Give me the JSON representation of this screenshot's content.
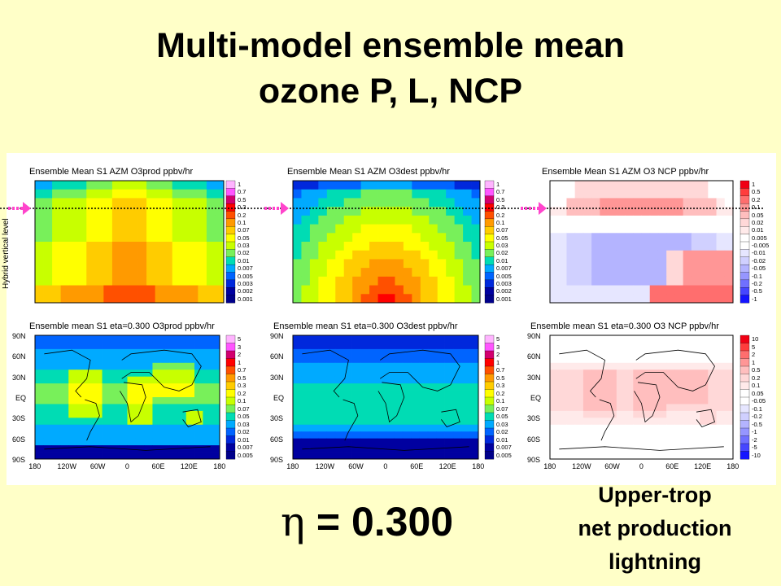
{
  "title": {
    "line1": "Multi-model ensemble mean",
    "line2": "ozone P, L, NCP"
  },
  "y_axis_label": "Hybrid vertical level",
  "eta_label": {
    "symbol": "η",
    "text": " = 0.300"
  },
  "annotation": [
    "Upper-trop",
    "net production",
    "lightning"
  ],
  "colors": {
    "background": "#ffffc8",
    "arrow": "#ff44cc",
    "level_line": "#000000"
  },
  "chart_data": [
    {
      "type": "heatmap",
      "title": "Ensemble Mean S1 AZM O3prod ppbv/hr",
      "colorbar_labels": [
        "1",
        "0.7",
        "0.5",
        "0.3",
        "0.2",
        "0.1",
        "0.07",
        "0.05",
        "0.03",
        "0.02",
        "0.01",
        "0.007",
        "0.005",
        "0.003",
        "0.002",
        "0.001"
      ],
      "palette": "sequential",
      "xlabel": "",
      "ylabel": "Hybrid vertical level"
    },
    {
      "type": "heatmap",
      "title": "Ensemble Mean S1 AZM O3dest ppbv/hr",
      "colorbar_labels": [
        "1",
        "0.7",
        "0.5",
        "0.3",
        "0.2",
        "0.1",
        "0.07",
        "0.05",
        "0.03",
        "0.02",
        "0.01",
        "0.007",
        "0.005",
        "0.003",
        "0.002",
        "0.001"
      ],
      "palette": "sequential"
    },
    {
      "type": "heatmap",
      "title": "Ensemble Mean S1 AZM O3 NCP ppbv/hr",
      "colorbar_labels": [
        "1",
        "0.5",
        "0.2",
        "0.1",
        "0.05",
        "0.02",
        "0.01",
        "0.005",
        "-0.005",
        "-0.01",
        "-0.02",
        "-0.05",
        "-0.1",
        "-0.2",
        "-0.5",
        "-1"
      ],
      "palette": "diverging"
    },
    {
      "type": "heatmap",
      "title": "Ensemble mean S1 eta=0.300 O3prod ppbv/hr",
      "yticks": [
        "90N",
        "60N",
        "30N",
        "EQ",
        "30S",
        "60S",
        "90S"
      ],
      "xticks": [
        "180",
        "120W",
        "60W",
        "0",
        "60E",
        "120E",
        "180"
      ],
      "colorbar_labels": [
        "5",
        "3",
        "2",
        "1",
        "0.7",
        "0.5",
        "0.3",
        "0.2",
        "0.1",
        "0.07",
        "0.05",
        "0.03",
        "0.02",
        "0.01",
        "0.007",
        "0.005"
      ],
      "palette": "sequential"
    },
    {
      "type": "heatmap",
      "title": "Ensemble mean S1 eta=0.300 O3dest ppbv/hr",
      "yticks": [
        "90N",
        "60N",
        "30N",
        "EQ",
        "30S",
        "60S",
        "90S"
      ],
      "xticks": [
        "180",
        "120W",
        "60W",
        "0",
        "60E",
        "120E",
        "180"
      ],
      "colorbar_labels": [
        "5",
        "3",
        "2",
        "1",
        "0.7",
        "0.5",
        "0.3",
        "0.2",
        "0.1",
        "0.07",
        "0.05",
        "0.03",
        "0.02",
        "0.01",
        "0.007",
        "0.005"
      ],
      "palette": "sequential"
    },
    {
      "type": "heatmap",
      "title": "Ensemble mean S1 eta=0.300 O3 NCP ppbv/hr",
      "yticks": [
        "90N",
        "60N",
        "30N",
        "EQ",
        "30S",
        "60S",
        "90S"
      ],
      "xticks": [
        "180",
        "120W",
        "60W",
        "0",
        "60E",
        "120E",
        "180"
      ],
      "colorbar_labels": [
        "10",
        "5",
        "2",
        "1",
        "0.5",
        "0.2",
        "0.1",
        "0.05",
        "-0.05",
        "-0.1",
        "-0.2",
        "-0.5",
        "-1",
        "-2",
        "-5",
        "-10"
      ],
      "palette": "diverging"
    }
  ]
}
